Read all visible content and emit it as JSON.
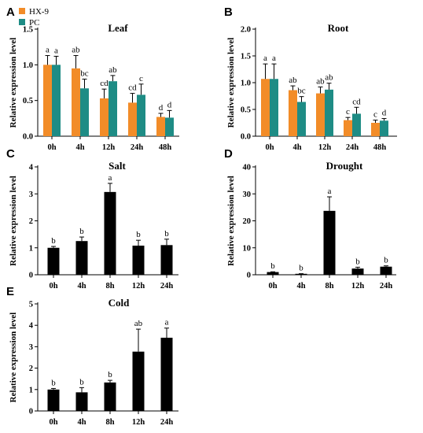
{
  "colors": {
    "hx9": "#f28c28",
    "pc": "#1e8c85",
    "single": "#000000"
  },
  "legend": [
    {
      "name": "HX-9",
      "color": "#f28c28"
    },
    {
      "name": "PC",
      "color": "#1e8c85"
    }
  ],
  "chart_data": [
    {
      "letter": "A",
      "title": "Leaf",
      "type": "bar",
      "ylabel": "Relative expression level",
      "ylim": [
        0,
        1.5
      ],
      "yticks": [
        "0.0",
        "0.5",
        "1.0",
        "1.5"
      ],
      "ytick_values": [
        0,
        0.5,
        1.0,
        1.5
      ],
      "categories": [
        "0h",
        "4h",
        "12h",
        "24h",
        "48h"
      ],
      "series": [
        {
          "name": "HX-9",
          "values": [
            1.0,
            0.95,
            0.53,
            0.47,
            0.27
          ],
          "err": [
            0.13,
            0.18,
            0.13,
            0.13,
            0.05
          ],
          "labels": [
            "a",
            "ab",
            "cd",
            "cd",
            "d"
          ]
        },
        {
          "name": "PC",
          "values": [
            1.0,
            0.67,
            0.77,
            0.58,
            0.26
          ],
          "err": [
            0.12,
            0.13,
            0.08,
            0.15,
            0.1
          ],
          "labels": [
            "a",
            "bc",
            "ab",
            "c",
            "d"
          ]
        }
      ]
    },
    {
      "letter": "B",
      "title": "Root",
      "type": "bar",
      "ylabel": "Relative expression level",
      "ylim": [
        0,
        2.0
      ],
      "yticks": [
        "0.0",
        "0.5",
        "1.0",
        "1.5",
        "2.0"
      ],
      "ytick_values": [
        0,
        0.5,
        1.0,
        1.5,
        2.0
      ],
      "categories": [
        "0h",
        "4h",
        "12h",
        "24h",
        "48h"
      ],
      "series": [
        {
          "name": "HX-9",
          "values": [
            1.07,
            0.86,
            0.8,
            0.3,
            0.25
          ],
          "err": [
            0.28,
            0.08,
            0.12,
            0.05,
            0.05
          ],
          "labels": [
            "a",
            "ab",
            "ab",
            "c",
            "c"
          ]
        },
        {
          "name": "PC",
          "values": [
            1.07,
            0.64,
            0.87,
            0.42,
            0.29
          ],
          "err": [
            0.28,
            0.1,
            0.12,
            0.12,
            0.04
          ],
          "labels": [
            "a",
            "bc",
            "ab",
            "cd",
            "d"
          ]
        }
      ]
    },
    {
      "letter": "C",
      "title": "Salt",
      "type": "bar",
      "ylabel": "Relative expression level",
      "ylim": [
        0,
        4
      ],
      "yticks": [
        "0",
        "1",
        "2",
        "3",
        "4"
      ],
      "ytick_values": [
        0,
        1,
        2,
        3,
        4
      ],
      "categories": [
        "0h",
        "4h",
        "8h",
        "12h",
        "24h"
      ],
      "series": [
        {
          "name": "",
          "values": [
            1.0,
            1.25,
            3.07,
            1.08,
            1.1
          ],
          "err": [
            0.05,
            0.15,
            0.32,
            0.2,
            0.22
          ],
          "labels": [
            "b",
            "b",
            "a",
            "b",
            "b"
          ]
        }
      ]
    },
    {
      "letter": "D",
      "title": "Drought",
      "type": "bar",
      "ylabel": "Relative expression level",
      "ylim": [
        0,
        40
      ],
      "yticks": [
        "0",
        "10",
        "20",
        "30",
        "40"
      ],
      "ytick_values": [
        0,
        10,
        20,
        30,
        40
      ],
      "categories": [
        "0h",
        "4h",
        "8h",
        "12h",
        "24h"
      ],
      "series": [
        {
          "name": "",
          "values": [
            1.0,
            0.3,
            23.7,
            2.3,
            3.0
          ],
          "err": [
            0.1,
            0.1,
            5.2,
            0.5,
            0.3
          ],
          "labels": [
            "b",
            "b",
            "a",
            "b",
            "b"
          ]
        }
      ]
    },
    {
      "letter": "E",
      "title": "Cold",
      "type": "bar",
      "ylabel": "Relative expression level",
      "ylim": [
        0,
        5
      ],
      "yticks": [
        "0",
        "1",
        "2",
        "3",
        "4",
        "5"
      ],
      "ytick_values": [
        0,
        1,
        2,
        3,
        4,
        5
      ],
      "categories": [
        "0h",
        "4h",
        "8h",
        "12h",
        "24h"
      ],
      "series": [
        {
          "name": "",
          "values": [
            1.0,
            0.87,
            1.33,
            2.77,
            3.42
          ],
          "err": [
            0.05,
            0.22,
            0.1,
            1.05,
            0.45
          ],
          "labels": [
            "b",
            "b",
            "b",
            "ab",
            "a"
          ]
        }
      ]
    }
  ]
}
